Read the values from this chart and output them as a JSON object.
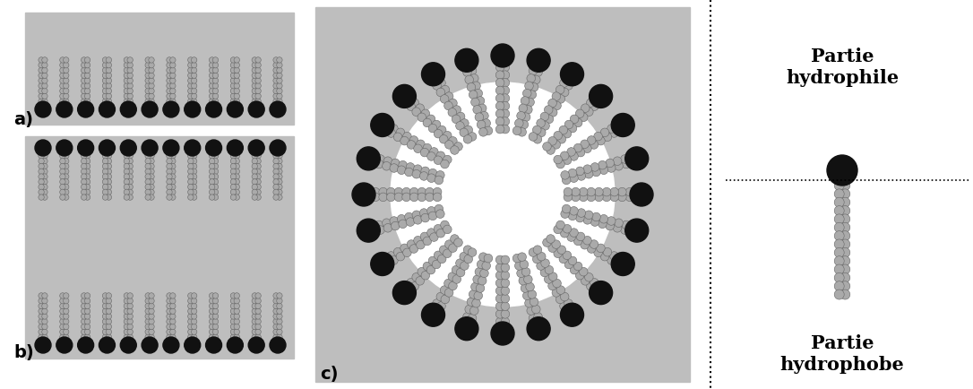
{
  "fig_width": 10.86,
  "fig_height": 4.34,
  "bg_color": "#ffffff",
  "panel_bg": "#bebebe",
  "head_color": "#111111",
  "tail_color": "#aaaaaa",
  "tail_edge": "#666666",
  "label_a": "a)",
  "label_b": "b)",
  "label_c": "c)",
  "text_hydrophile": "Partie\nhydrophile",
  "text_hydrophobe": "Partie\nhydrophobe"
}
